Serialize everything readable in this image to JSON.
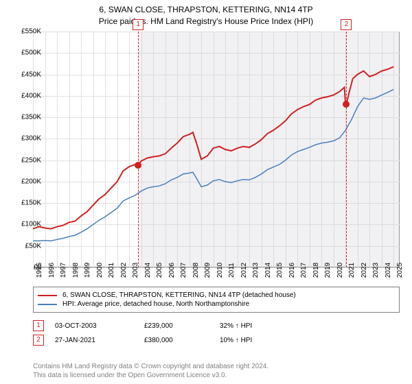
{
  "title": {
    "line1": "6, SWAN CLOSE, THRAPSTON, KETTERING, NN14 4TP",
    "line2": "Price paid vs. HM Land Registry's House Price Index (HPI)"
  },
  "chart": {
    "type": "line",
    "background_color": "#ffffff",
    "grid_color": "#e0e0e0",
    "border_color": "#808080",
    "xlim": [
      1995,
      2025.5
    ],
    "ylim": [
      0,
      550
    ],
    "yticks": [
      0,
      50,
      100,
      150,
      200,
      250,
      300,
      350,
      400,
      450,
      500,
      550
    ],
    "ytick_labels": [
      "£0",
      "£50K",
      "£100K",
      "£150K",
      "£200K",
      "£250K",
      "£300K",
      "£350K",
      "£400K",
      "£450K",
      "£500K",
      "£550K"
    ],
    "xticks": [
      1995,
      1996,
      1997,
      1998,
      1999,
      2000,
      2001,
      2002,
      2003,
      2004,
      2005,
      2006,
      2007,
      2008,
      2009,
      2010,
      2011,
      2012,
      2013,
      2014,
      2015,
      2016,
      2017,
      2018,
      2019,
      2020,
      2021,
      2022,
      2023,
      2024,
      2025
    ],
    "ytick_fontsize": 10,
    "xtick_fontsize": 10,
    "series": [
      {
        "name": "property",
        "label": "6, SWAN CLOSE, THRAPSTON, KETTERING, NN14 4TP (detached house)",
        "color": "#d02020",
        "line_width": 2,
        "data": [
          [
            1995,
            90
          ],
          [
            1995.5,
            95
          ],
          [
            1996,
            92
          ],
          [
            1996.5,
            90
          ],
          [
            1997,
            95
          ],
          [
            1997.5,
            98
          ],
          [
            1998,
            105
          ],
          [
            1998.5,
            108
          ],
          [
            1999,
            120
          ],
          [
            1999.5,
            130
          ],
          [
            2000,
            145
          ],
          [
            2000.5,
            160
          ],
          [
            2001,
            170
          ],
          [
            2001.5,
            185
          ],
          [
            2002,
            200
          ],
          [
            2002.5,
            225
          ],
          [
            2003,
            235
          ],
          [
            2003.5,
            240
          ],
          [
            2003.75,
            239
          ],
          [
            2004,
            248
          ],
          [
            2004.5,
            255
          ],
          [
            2005,
            258
          ],
          [
            2005.5,
            260
          ],
          [
            2006,
            265
          ],
          [
            2006.5,
            278
          ],
          [
            2007,
            290
          ],
          [
            2007.5,
            305
          ],
          [
            2008,
            310
          ],
          [
            2008.3,
            315
          ],
          [
            2008.6,
            290
          ],
          [
            2009,
            252
          ],
          [
            2009.5,
            260
          ],
          [
            2010,
            278
          ],
          [
            2010.5,
            282
          ],
          [
            2011,
            275
          ],
          [
            2011.5,
            272
          ],
          [
            2012,
            278
          ],
          [
            2012.5,
            282
          ],
          [
            2013,
            280
          ],
          [
            2013.5,
            288
          ],
          [
            2014,
            298
          ],
          [
            2014.5,
            312
          ],
          [
            2015,
            320
          ],
          [
            2015.5,
            330
          ],
          [
            2016,
            342
          ],
          [
            2016.5,
            358
          ],
          [
            2017,
            368
          ],
          [
            2017.5,
            375
          ],
          [
            2018,
            380
          ],
          [
            2018.5,
            390
          ],
          [
            2019,
            395
          ],
          [
            2019.5,
            398
          ],
          [
            2020,
            402
          ],
          [
            2020.5,
            410
          ],
          [
            2020.9,
            420
          ],
          [
            2021,
            380
          ],
          [
            2021.1,
            385
          ],
          [
            2021.3,
            408
          ],
          [
            2021.6,
            440
          ],
          [
            2022,
            450
          ],
          [
            2022.5,
            458
          ],
          [
            2023,
            445
          ],
          [
            2023.5,
            450
          ],
          [
            2024,
            458
          ],
          [
            2024.5,
            462
          ],
          [
            2025,
            468
          ]
        ]
      },
      {
        "name": "hpi",
        "label": "HPI: Average price, detached house, North Northamptonshire",
        "color": "#4a7fb8",
        "line_width": 1.5,
        "data": [
          [
            1995,
            62
          ],
          [
            1995.5,
            62
          ],
          [
            1996,
            63
          ],
          [
            1996.5,
            62
          ],
          [
            1997,
            65
          ],
          [
            1997.5,
            68
          ],
          [
            1998,
            72
          ],
          [
            1998.5,
            75
          ],
          [
            1999,
            82
          ],
          [
            1999.5,
            90
          ],
          [
            2000,
            100
          ],
          [
            2000.5,
            110
          ],
          [
            2001,
            118
          ],
          [
            2001.5,
            128
          ],
          [
            2002,
            138
          ],
          [
            2002.5,
            155
          ],
          [
            2003,
            162
          ],
          [
            2003.5,
            168
          ],
          [
            2004,
            178
          ],
          [
            2004.5,
            185
          ],
          [
            2005,
            188
          ],
          [
            2005.5,
            190
          ],
          [
            2006,
            195
          ],
          [
            2006.5,
            204
          ],
          [
            2007,
            210
          ],
          [
            2007.5,
            218
          ],
          [
            2008,
            220
          ],
          [
            2008.3,
            222
          ],
          [
            2008.6,
            208
          ],
          [
            2009,
            188
          ],
          [
            2009.5,
            192
          ],
          [
            2010,
            202
          ],
          [
            2010.5,
            205
          ],
          [
            2011,
            200
          ],
          [
            2011.5,
            198
          ],
          [
            2012,
            202
          ],
          [
            2012.5,
            205
          ],
          [
            2013,
            204
          ],
          [
            2013.5,
            210
          ],
          [
            2014,
            218
          ],
          [
            2014.5,
            228
          ],
          [
            2015,
            234
          ],
          [
            2015.5,
            240
          ],
          [
            2016,
            250
          ],
          [
            2016.5,
            262
          ],
          [
            2017,
            270
          ],
          [
            2017.5,
            275
          ],
          [
            2018,
            280
          ],
          [
            2018.5,
            286
          ],
          [
            2019,
            290
          ],
          [
            2019.5,
            292
          ],
          [
            2020,
            295
          ],
          [
            2020.5,
            302
          ],
          [
            2021,
            320
          ],
          [
            2021.5,
            345
          ],
          [
            2022,
            375
          ],
          [
            2022.5,
            395
          ],
          [
            2023,
            392
          ],
          [
            2023.5,
            395
          ],
          [
            2024,
            402
          ],
          [
            2024.5,
            408
          ],
          [
            2025,
            415
          ]
        ]
      }
    ],
    "markers": [
      {
        "id": "1",
        "x": 2003.75,
        "y": 239,
        "shade_to": 2021.07
      },
      {
        "id": "2",
        "x": 2021.07,
        "y": 380,
        "shade_to": 2025.5
      }
    ]
  },
  "legend": {
    "items": [
      {
        "color": "#d02020",
        "label": "6, SWAN CLOSE, THRAPSTON, KETTERING, NN14 4TP (detached house)"
      },
      {
        "color": "#4a7fb8",
        "label": "HPI: Average price, detached house, North Northamptonshire"
      }
    ]
  },
  "sales": [
    {
      "id": "1",
      "date": "03-OCT-2003",
      "price": "£239,000",
      "hpi": "32% ↑ HPI"
    },
    {
      "id": "2",
      "date": "27-JAN-2021",
      "price": "£380,000",
      "hpi": "10% ↑ HPI"
    }
  ],
  "footnote": {
    "line1": "Contains HM Land Registry data © Crown copyright and database right 2024.",
    "line2": "This data is licensed under the Open Government Licence v3.0."
  }
}
